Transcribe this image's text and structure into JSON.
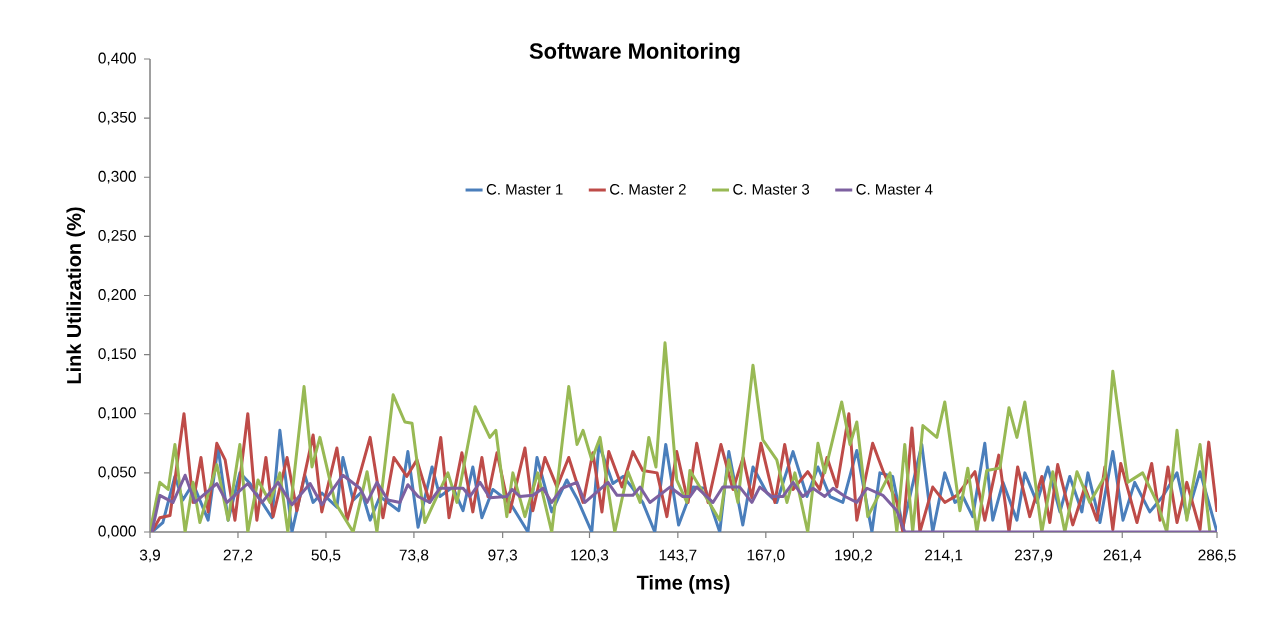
{
  "chart_data": {
    "type": "line",
    "title": "Software Monitoring",
    "xlabel": "Time (ms)",
    "ylabel": "Link Utilization (%)",
    "legend": "top",
    "xlim": [
      3.9,
      286.5
    ],
    "ylim": [
      0,
      0.4
    ],
    "xticks": [
      {
        "value": 3.9,
        "label": "3,9"
      },
      {
        "value": 27.2,
        "label": "27,2"
      },
      {
        "value": 50.5,
        "label": "50,5"
      },
      {
        "value": 73.8,
        "label": "73,8"
      },
      {
        "value": 97.3,
        "label": "97,3"
      },
      {
        "value": 120.3,
        "label": "120,3"
      },
      {
        "value": 143.7,
        "label": "143,7"
      },
      {
        "value": 167.0,
        "label": "167,0"
      },
      {
        "value": 190.2,
        "label": "190,2"
      },
      {
        "value": 214.1,
        "label": "214,1"
      },
      {
        "value": 237.9,
        "label": "237,9"
      },
      {
        "value": 261.4,
        "label": "261,4"
      },
      {
        "value": 286.5,
        "label": "286,5"
      }
    ],
    "yticks": [
      {
        "value": 0,
        "label": "0,000"
      },
      {
        "value": 0.05,
        "label": "0,050"
      },
      {
        "value": 0.1,
        "label": "0,100"
      },
      {
        "value": 0.15,
        "label": "0,150"
      },
      {
        "value": 0.2,
        "label": "0,200"
      },
      {
        "value": 0.25,
        "label": "0,250"
      },
      {
        "value": 0.3,
        "label": "0,300"
      },
      {
        "value": 0.35,
        "label": "0,350"
      },
      {
        "value": 0.4,
        "label": "0,400"
      }
    ],
    "series": [
      {
        "name": "C. Master 1",
        "color": "#4a7ebb",
        "x": [
          4.4,
          7.3,
          10.5,
          12.6,
          15.3,
          19.3,
          21.9,
          24.6,
          27.7,
          30.4,
          36.2,
          38.3,
          41.5,
          44.9,
          47.1,
          49.4,
          53.4,
          55.0,
          57.7,
          60.0,
          62.2,
          64.8,
          69.8,
          72.2,
          74.9,
          78.6,
          80.7,
          84.1,
          86.8,
          89.4,
          91.8,
          94.7,
          99.2,
          104.0,
          106.4,
          110.3,
          114.3,
          117.2,
          120.9,
          122.8,
          126.5,
          129.2,
          131.5,
          134.4,
          137.6,
          140.5,
          143.9,
          147.7,
          150.9,
          154.8,
          157.2,
          160.9,
          163.6,
          167.3,
          169.9,
          174.2,
          177.9,
          180.8,
          184.0,
          187.4,
          191.1,
          195.1,
          197.2,
          200.6,
          203.3,
          208.3,
          211.2,
          214.4,
          217.1,
          219.2,
          221.8,
          225.0,
          227.1,
          229.8,
          233.5,
          235.6,
          238.8,
          241.7,
          244.9,
          247.5,
          250.7,
          252.3,
          255.5,
          258.9,
          261.6,
          264.7,
          268.7,
          272.1,
          275.9,
          278.5,
          282.0,
          286.5
        ],
        "values": [
          0,
          0.008,
          0.047,
          0.027,
          0.041,
          0.01,
          0.072,
          0.01,
          0.05,
          0.041,
          0.012,
          0.086,
          0,
          0.048,
          0.025,
          0.033,
          0.021,
          0.063,
          0.027,
          0.034,
          0.01,
          0.03,
          0.018,
          0.068,
          0.004,
          0.055,
          0.03,
          0.038,
          0.018,
          0.055,
          0.012,
          0.036,
          0.025,
          0,
          0.063,
          0.017,
          0.044,
          0.027,
          0,
          0.074,
          0.041,
          0.047,
          0.038,
          0.025,
          0,
          0.074,
          0.006,
          0.038,
          0.037,
          0,
          0.068,
          0.006,
          0.055,
          0.033,
          0.025,
          0.068,
          0.03,
          0.055,
          0.03,
          0.025,
          0.069,
          0,
          0.05,
          0.047,
          0.004,
          0.074,
          0,
          0.05,
          0.025,
          0.03,
          0.013,
          0.075,
          0.01,
          0.042,
          0.01,
          0.05,
          0.025,
          0.055,
          0.017,
          0.047,
          0.017,
          0.05,
          0.008,
          0.068,
          0.01,
          0.042,
          0.017,
          0.03,
          0.05,
          0.013,
          0.051,
          0
        ]
      },
      {
        "name": "C. Master 2",
        "color": "#be4b48",
        "x": [
          4.4,
          6.5,
          9.2,
          12.9,
          15.3,
          17.4,
          19.3,
          21.6,
          23.8,
          26.4,
          29.8,
          32.2,
          34.6,
          36.5,
          40.2,
          42.8,
          47.1,
          49.4,
          53.4,
          56.1,
          62.2,
          65.6,
          68.5,
          71.9,
          74.6,
          75.4,
          78.0,
          80.9,
          83.1,
          86.5,
          89.4,
          91.8,
          93.4,
          95.8,
          99.2,
          103.2,
          105.3,
          108.5,
          111.7,
          114.8,
          118.6,
          121.2,
          123.6,
          125.4,
          128.9,
          131.8,
          134.4,
          138.2,
          140.8,
          143.4,
          146.4,
          148.7,
          151.7,
          155.1,
          158.3,
          161.0,
          163.3,
          165.7,
          169.4,
          172.0,
          174.2,
          178.1,
          181.3,
          183.2,
          185.8,
          189.0,
          191.1,
          195.3,
          198.0,
          201.7,
          203.3,
          205.7,
          207.8,
          211.2,
          214.4,
          217.6,
          222.4,
          225.0,
          228.7,
          231.4,
          233.7,
          236.9,
          240.1,
          242.2,
          244.3,
          248.3,
          251.5,
          254.7,
          256.8,
          258.9,
          261.0,
          265.3,
          269.2,
          271.4,
          273.5,
          275.9,
          278.5,
          282.0,
          284.3,
          286.5
        ],
        "values": [
          0,
          0.012,
          0.014,
          0.1,
          0.025,
          0.063,
          0.017,
          0.075,
          0.061,
          0.01,
          0.1,
          0.01,
          0.063,
          0.013,
          0.063,
          0.018,
          0.082,
          0.017,
          0.071,
          0.01,
          0.08,
          0.012,
          0.063,
          0.047,
          0.061,
          0.052,
          0.025,
          0.08,
          0.012,
          0.067,
          0.017,
          0.063,
          0.03,
          0.067,
          0.017,
          0.071,
          0.018,
          0.063,
          0.038,
          0.063,
          0.025,
          0.067,
          0.017,
          0.068,
          0.038,
          0.068,
          0.052,
          0.05,
          0.013,
          0.068,
          0.025,
          0.075,
          0.025,
          0.074,
          0.036,
          0.063,
          0.029,
          0.075,
          0.025,
          0.074,
          0.036,
          0.051,
          0.036,
          0.063,
          0.038,
          0.1,
          0.01,
          0.075,
          0.052,
          0.025,
          0,
          0.088,
          0,
          0.038,
          0.025,
          0.031,
          0.051,
          0.01,
          0.065,
          0,
          0.055,
          0.013,
          0.047,
          0.008,
          0.057,
          0.006,
          0.038,
          0.01,
          0.055,
          0.002,
          0.058,
          0.008,
          0.058,
          0.01,
          0.055,
          0.008,
          0.042,
          0.002,
          0.076,
          0.017
        ]
      },
      {
        "name": "C. Master 3",
        "color": "#98b954",
        "x": [
          3.9,
          6.5,
          8.7,
          10.5,
          13.2,
          15.3,
          17.1,
          21.6,
          24.6,
          27.7,
          29.8,
          32.5,
          35.7,
          38.3,
          40.4,
          44.7,
          46.8,
          48.9,
          52.9,
          57.7,
          61.4,
          64.0,
          68.3,
          71.4,
          73.3,
          76.7,
          82.8,
          85.2,
          90.0,
          93.9,
          95.5,
          98.4,
          100.0,
          103.2,
          106.6,
          110.3,
          114.8,
          117.0,
          118.6,
          120.9,
          123.1,
          127.0,
          130.5,
          133.7,
          136.0,
          137.9,
          140.3,
          143.4,
          146.1,
          146.9,
          154.8,
          157.2,
          159.6,
          163.6,
          166.2,
          169.9,
          172.6,
          174.7,
          178.1,
          180.8,
          182.6,
          187.1,
          189.3,
          191.1,
          194.0,
          199.9,
          201.7,
          203.8,
          205.9,
          208.6,
          212.3,
          214.4,
          218.4,
          220.5,
          222.9,
          225.5,
          229.0,
          231.4,
          233.5,
          235.6,
          240.1,
          243.0,
          246.2,
          249.4,
          252.8,
          256.8,
          258.9,
          262.9,
          266.8,
          270.6,
          273.2,
          275.9,
          278.5,
          282.0,
          284.6
        ],
        "values": [
          0,
          0.042,
          0.036,
          0.074,
          0,
          0.042,
          0.008,
          0.057,
          0.01,
          0.074,
          0,
          0.044,
          0.025,
          0.05,
          0,
          0.123,
          0.055,
          0.08,
          0.025,
          0,
          0.051,
          0,
          0.116,
          0.093,
          0.092,
          0.008,
          0.05,
          0.025,
          0.106,
          0.08,
          0.086,
          0.013,
          0.05,
          0.013,
          0.05,
          0,
          0.123,
          0.074,
          0.086,
          0.061,
          0.08,
          0,
          0.051,
          0.025,
          0.08,
          0.055,
          0.16,
          0.044,
          0.025,
          0.052,
          0.01,
          0.061,
          0.025,
          0.141,
          0.078,
          0.061,
          0.025,
          0.05,
          0,
          0.075,
          0.05,
          0.11,
          0.074,
          0.093,
          0.013,
          0.05,
          0,
          0.074,
          0,
          0.09,
          0.08,
          0.11,
          0.018,
          0.054,
          0,
          0.052,
          0.054,
          0.105,
          0.08,
          0.11,
          0,
          0.051,
          0,
          0.051,
          0.025,
          0.047,
          0.136,
          0.042,
          0.05,
          0.025,
          0,
          0.086,
          0.01,
          0.074,
          0
        ]
      },
      {
        "name": "C. Master 4",
        "color": "#7d60a0",
        "x": [
          4.4,
          6.5,
          10.0,
          13.2,
          15.8,
          21.6,
          24.3,
          29.8,
          33.6,
          37.8,
          41.5,
          46.3,
          49.4,
          55.0,
          59.5,
          61.4,
          64.0,
          66.9,
          70.1,
          72.2,
          74.9,
          78.0,
          80.7,
          86.8,
          88.6,
          91.3,
          93.9,
          98.4,
          99.8,
          101.9,
          105.3,
          108.0,
          110.3,
          113.0,
          117.0,
          119.1,
          125.2,
          127.6,
          131.8,
          133.7,
          136.3,
          141.6,
          145.0,
          146.9,
          148.7,
          153.0,
          155.6,
          160.1,
          163.3,
          165.4,
          168.6,
          171.5,
          174.2,
          176.8,
          179.5,
          182.6,
          184.8,
          188.0,
          191.1,
          193.8,
          198.0,
          201.7,
          203.8,
          286.5
        ],
        "values": [
          0,
          0.031,
          0.025,
          0.048,
          0.025,
          0.041,
          0.025,
          0.041,
          0.025,
          0.042,
          0.023,
          0.041,
          0.023,
          0.048,
          0.037,
          0.025,
          0.042,
          0.027,
          0.025,
          0.04,
          0.03,
          0.025,
          0.037,
          0.037,
          0.03,
          0.042,
          0.029,
          0.03,
          0.036,
          0.03,
          0.031,
          0.037,
          0.025,
          0.037,
          0.042,
          0.025,
          0.042,
          0.031,
          0.031,
          0.038,
          0.025,
          0.038,
          0.03,
          0.03,
          0.038,
          0.025,
          0.038,
          0.038,
          0.025,
          0.038,
          0.03,
          0.03,
          0.042,
          0.03,
          0.037,
          0.03,
          0.037,
          0.03,
          0.025,
          0.037,
          0.031,
          0.018,
          0,
          0
        ]
      }
    ]
  }
}
